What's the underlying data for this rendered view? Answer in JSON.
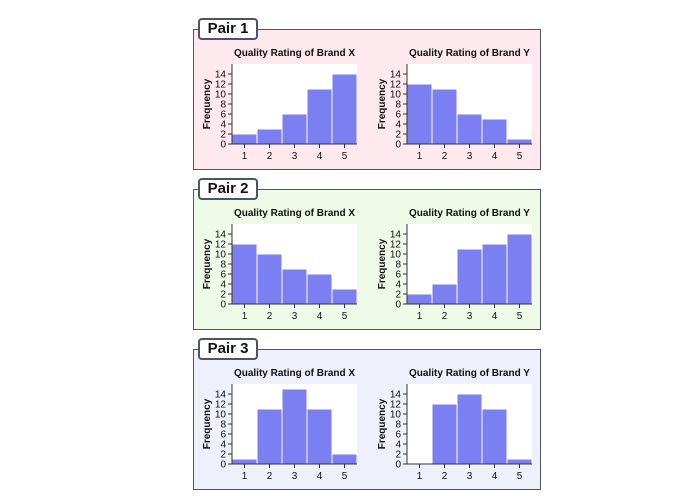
{
  "colors": {
    "bar_fill": "#7b7ff2",
    "bar_stroke": "#ffffff",
    "plot_bg": "#ffffff",
    "axis": "#333333"
  },
  "pairs": [
    {
      "label": "Pair 1",
      "background": "#fde9ee"
    },
    {
      "label": "Pair 2",
      "background": "#effbe8"
    },
    {
      "label": "Pair 3",
      "background": "#eef0fb"
    }
  ],
  "chart_data": [
    {
      "type": "bar",
      "pair": "Pair 1",
      "title": "Quality Rating of Brand X",
      "xlabel": "",
      "ylabel": "Frequency",
      "categories": [
        "1",
        "2",
        "3",
        "4",
        "5"
      ],
      "values": [
        2,
        3,
        6,
        11,
        14
      ],
      "yticks": [
        "0",
        "2",
        "4",
        "6",
        "8",
        "10",
        "12",
        "14"
      ],
      "ylim": [
        0,
        16
      ]
    },
    {
      "type": "bar",
      "pair": "Pair 1",
      "title": "Quality Rating of Brand Y",
      "xlabel": "",
      "ylabel": "Frequency",
      "categories": [
        "1",
        "2",
        "3",
        "4",
        "5"
      ],
      "values": [
        12,
        11,
        6,
        5,
        1
      ],
      "yticks": [
        "0",
        "2",
        "4",
        "6",
        "8",
        "10",
        "12",
        "14"
      ],
      "ylim": [
        0,
        16
      ]
    },
    {
      "type": "bar",
      "pair": "Pair 2",
      "title": "Quality Rating of Brand X",
      "xlabel": "",
      "ylabel": "Frequency",
      "categories": [
        "1",
        "2",
        "3",
        "4",
        "5"
      ],
      "values": [
        12,
        10,
        7,
        6,
        3
      ],
      "yticks": [
        "0",
        "2",
        "4",
        "6",
        "8",
        "10",
        "12",
        "14"
      ],
      "ylim": [
        0,
        16
      ]
    },
    {
      "type": "bar",
      "pair": "Pair 2",
      "title": "Quality Rating of Brand Y",
      "xlabel": "",
      "ylabel": "Frequency",
      "categories": [
        "1",
        "2",
        "3",
        "4",
        "5"
      ],
      "values": [
        2,
        4,
        11,
        12,
        14
      ],
      "yticks": [
        "0",
        "2",
        "4",
        "6",
        "8",
        "10",
        "12",
        "14"
      ],
      "ylim": [
        0,
        16
      ]
    },
    {
      "type": "bar",
      "pair": "Pair 3",
      "title": "Quality Rating of Brand X",
      "xlabel": "",
      "ylabel": "Frequency",
      "categories": [
        "1",
        "2",
        "3",
        "4",
        "5"
      ],
      "values": [
        1,
        11,
        15,
        11,
        2
      ],
      "yticks": [
        "0",
        "2",
        "4",
        "6",
        "8",
        "10",
        "12",
        "14"
      ],
      "ylim": [
        0,
        16
      ]
    },
    {
      "type": "bar",
      "pair": "Pair 3",
      "title": "Quality Rating of Brand Y",
      "xlabel": "",
      "ylabel": "Frequency",
      "categories": [
        "1",
        "2",
        "3",
        "4",
        "5"
      ],
      "values": [
        0,
        12,
        14,
        11,
        1
      ],
      "yticks": [
        "0",
        "2",
        "4",
        "6",
        "8",
        "10",
        "12",
        "14"
      ],
      "ylim": [
        0,
        16
      ]
    }
  ]
}
